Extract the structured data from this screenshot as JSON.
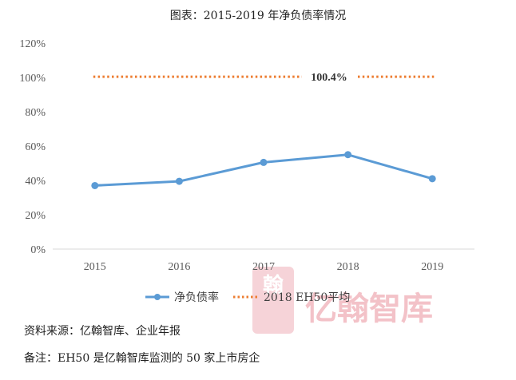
{
  "footer": {
    "source": "资料来源：亿翰智库、企业年报",
    "note": "备注：EH50 是亿翰智库监测的 50 家上市房企"
  },
  "watermark": {
    "text": "亿翰智库",
    "glyph": "翰",
    "color": "#f3c2c8"
  },
  "chart_data": {
    "type": "line",
    "title": "图表：2015-2019 年净负债率情况",
    "categories": [
      "2015",
      "2016",
      "2017",
      "2018",
      "2019"
    ],
    "yticks": [
      "0%",
      "20%",
      "40%",
      "60%",
      "80%",
      "100%",
      "120%"
    ],
    "ylim": [
      0,
      120
    ],
    "grid": false,
    "legend_position": "bottom",
    "series": [
      {
        "name": "净负债率",
        "style": "solid-markers",
        "color": "#5b9bd5",
        "values": [
          37,
          39.5,
          50.5,
          55,
          41
        ]
      },
      {
        "name": "2018 EH50平均",
        "style": "dotted",
        "color": "#ed7d31",
        "values": [
          100.4,
          100.4,
          100.4,
          100.4,
          100.4
        ]
      }
    ],
    "annotation": "100.4%"
  }
}
